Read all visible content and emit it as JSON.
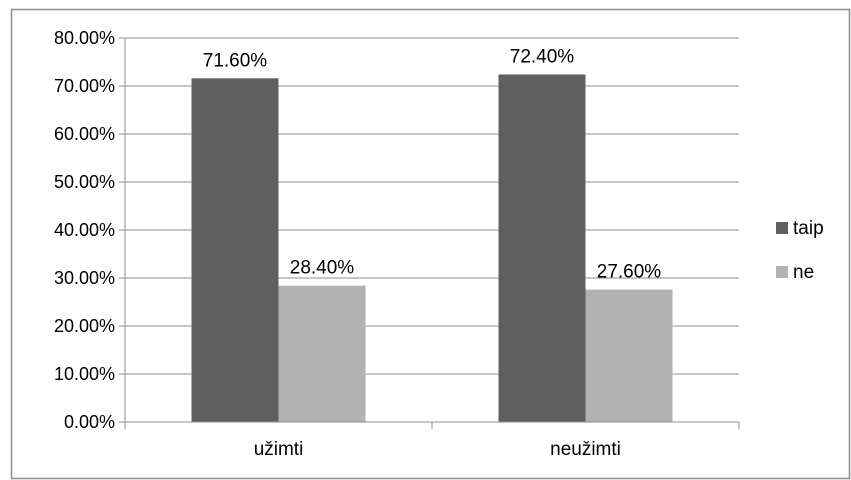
{
  "chart_data": {
    "type": "bar",
    "categories": [
      "užimti",
      "neužimti"
    ],
    "series": [
      {
        "name": "taip",
        "values": [
          71.6,
          72.4
        ],
        "labels": [
          "71.60%",
          "72.40%"
        ],
        "color": "#5f5f5f"
      },
      {
        "name": "ne",
        "values": [
          28.4,
          27.6
        ],
        "labels": [
          "28.40%",
          "27.60%"
        ],
        "color": "#b2b2b2"
      }
    ],
    "ylim": [
      0,
      80
    ],
    "yticks": [
      "0.00%",
      "10.00%",
      "20.00%",
      "30.00%",
      "40.00%",
      "50.00%",
      "60.00%",
      "70.00%",
      "80.00%"
    ],
    "grid": true,
    "legend": "right",
    "title": "",
    "xlabel": "",
    "ylabel": ""
  },
  "colors": {
    "gridline": "#8c8c8c",
    "axis": "#8c8c8c",
    "frame": "#8c8c8c",
    "background": "#ffffff"
  }
}
